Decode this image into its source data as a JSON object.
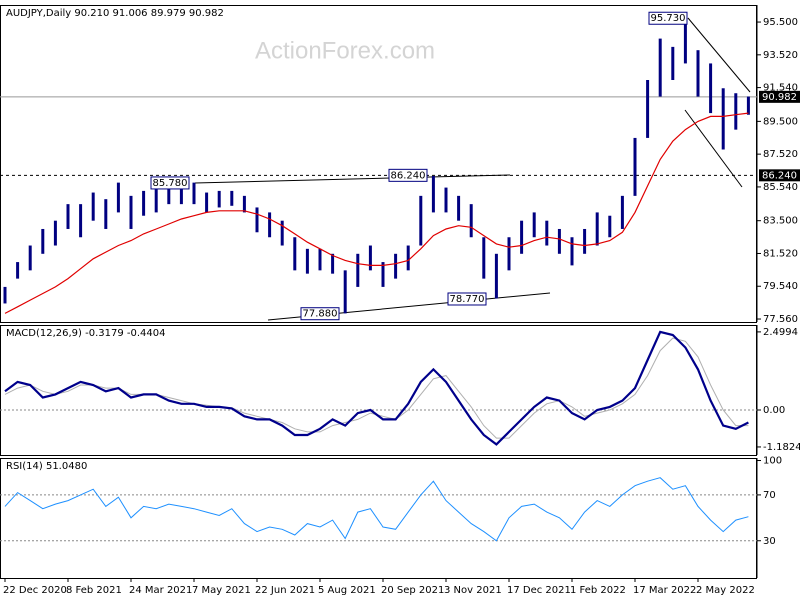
{
  "chart_data": [
    {
      "type": "hilo",
      "title": "AUDJPY,Daily  90.210 91.006 89.979 90.982",
      "watermark": "ActionForex.com",
      "categories": [
        "22 Dec 2020",
        null,
        null,
        null,
        null,
        "8 Feb 2021",
        null,
        null,
        null,
        null,
        "24 Mar 2021",
        null,
        null,
        null,
        null,
        "7 May 2021",
        null,
        null,
        null,
        null,
        "22 Jun 2021",
        null,
        null,
        null,
        null,
        "5 Aug 2021",
        null,
        null,
        null,
        null,
        "20 Sep 2021",
        null,
        null,
        null,
        null,
        "3 Nov 2021",
        null,
        null,
        null,
        null,
        "17 Dec 2021",
        null,
        null,
        null,
        null,
        "1 Feb 2022",
        null,
        null,
        null,
        null,
        "17 Mar 2022",
        null,
        null,
        null,
        null,
        "2 May 2022",
        null,
        null,
        null,
        null
      ],
      "high": [
        79.5,
        81,
        82,
        83,
        83.5,
        84.5,
        84.5,
        85.2,
        84.8,
        85.8,
        85,
        85.3,
        85.5,
        85.5,
        85.6,
        85.8,
        85.2,
        85.3,
        85.3,
        85,
        84.3,
        84,
        83.5,
        82.5,
        81.8,
        81.8,
        81.5,
        80.5,
        81.5,
        82,
        81,
        81.5,
        82,
        85,
        86.2,
        85.5,
        85,
        84.5,
        82.5,
        81.5,
        82.5,
        83.5,
        84,
        83.5,
        83,
        82.5,
        83,
        84,
        83.8,
        85,
        88.5,
        92,
        94.5,
        94,
        95.7,
        93.8,
        93,
        91.5,
        91.2,
        91
      ],
      "low": [
        78.5,
        80,
        80.5,
        81.5,
        82,
        83,
        82.5,
        83.5,
        83,
        84,
        83,
        83.8,
        84,
        84.5,
        84.5,
        84.5,
        84,
        84.3,
        84.4,
        84,
        82.8,
        82.5,
        82,
        80.5,
        80.3,
        80.5,
        80.3,
        77.9,
        79.5,
        80.5,
        79.5,
        80,
        80.5,
        82,
        84,
        84,
        83.5,
        82.5,
        80,
        78.8,
        80.5,
        81.5,
        82.5,
        82,
        81.5,
        80.8,
        81.5,
        82,
        82.5,
        83,
        85,
        88.5,
        91,
        92,
        93,
        91,
        90,
        87.8,
        89,
        89.9
      ],
      "color": "#000080",
      "ma_values": [
        77.9,
        78.3,
        78.7,
        79.1,
        79.5,
        80,
        80.6,
        81.2,
        81.6,
        82,
        82.3,
        82.7,
        83,
        83.3,
        83.6,
        83.8,
        84,
        84.1,
        84.1,
        84.1,
        83.9,
        83.6,
        83.2,
        82.7,
        82.2,
        81.8,
        81.4,
        81.1,
        80.9,
        80.8,
        80.8,
        80.9,
        81.1,
        81.8,
        82.6,
        83,
        83.2,
        83.1,
        82.6,
        82.1,
        81.9,
        82,
        82.3,
        82.5,
        82.4,
        82.1,
        82,
        82.1,
        82.3,
        82.8,
        84,
        85.6,
        87.2,
        88.3,
        89,
        89.5,
        89.8,
        89.8,
        89.9,
        90
      ],
      "ma_color": "#e00000",
      "ylim": [
        77.38,
        96.53
      ],
      "yticks": [
        {
          "value": 95.5,
          "label": "95.500"
        },
        {
          "value": 93.52,
          "label": "93.520"
        },
        {
          "value": 91.54,
          "label": "91.540"
        },
        {
          "value": 89.5,
          "label": "89.500"
        },
        {
          "value": 87.52,
          "label": "87.520"
        },
        {
          "value": 85.54,
          "label": "85.540"
        },
        {
          "value": 83.5,
          "label": "83.500"
        },
        {
          "value": 81.52,
          "label": "81.520"
        },
        {
          "value": 79.54,
          "label": "79.540"
        },
        {
          "value": 77.56,
          "label": "77.560"
        }
      ],
      "levels": [
        {
          "value": 90.982,
          "label": "90.982",
          "style": "solid"
        },
        {
          "value": 86.24,
          "label": "86.240",
          "style": "dashed"
        }
      ],
      "annotations": [
        {
          "value": 85.78,
          "label": "85.780"
        },
        {
          "value": 86.24,
          "label": "86.240"
        },
        {
          "value": 95.73,
          "label": "95.730"
        },
        {
          "value": 77.88,
          "label": "77.880"
        },
        {
          "value": 78.77,
          "label": "78.770"
        }
      ]
    },
    {
      "type": "line",
      "title": "MACD(12,26,9) -0.3179 -0.4404",
      "values": [
        0.6,
        0.9,
        0.8,
        0.4,
        0.5,
        0.7,
        0.9,
        0.8,
        0.6,
        0.7,
        0.4,
        0.5,
        0.5,
        0.3,
        0.2,
        0.2,
        0.1,
        0.1,
        0.05,
        -0.2,
        -0.3,
        -0.3,
        -0.5,
        -0.8,
        -0.8,
        -0.6,
        -0.3,
        -0.5,
        -0.1,
        0,
        -0.3,
        -0.3,
        0.2,
        0.9,
        1.3,
        0.9,
        0.3,
        -0.3,
        -0.8,
        -1.1,
        -0.7,
        -0.3,
        0.1,
        0.4,
        0.3,
        -0.1,
        -0.3,
        0,
        0.1,
        0.3,
        0.7,
        1.6,
        2.5,
        2.4,
        2,
        1.3,
        0.3,
        -0.5,
        -0.6,
        -0.4
      ],
      "color": "#00008b",
      "signal_values": [
        0.5,
        0.7,
        0.8,
        0.6,
        0.5,
        0.6,
        0.8,
        0.8,
        0.7,
        0.7,
        0.5,
        0.5,
        0.5,
        0.4,
        0.3,
        0.2,
        0.15,
        0.1,
        0.07,
        -0.1,
        -0.2,
        -0.3,
        -0.4,
        -0.6,
        -0.7,
        -0.7,
        -0.5,
        -0.4,
        -0.3,
        -0.1,
        -0.2,
        -0.3,
        0,
        0.5,
        1,
        1.1,
        0.6,
        0.1,
        -0.5,
        -0.9,
        -0.9,
        -0.5,
        -0.1,
        0.2,
        0.3,
        0.1,
        -0.2,
        -0.1,
        0,
        0.2,
        0.5,
        1.1,
        1.9,
        2.3,
        2.2,
        1.7,
        0.8,
        0,
        -0.5,
        -0.5
      ],
      "signal_color": "#b0b0b0",
      "ylim": [
        -1.44,
        2.72
      ],
      "yticks": [
        2.4994,
        {
          "value": 0,
          "label": "0.00"
        },
        -1.1824
      ],
      "level_lines": [
        0
      ]
    },
    {
      "type": "line",
      "title": "RSI(14) 51.0480",
      "values": [
        60,
        72,
        65,
        58,
        62,
        65,
        70,
        75,
        60,
        68,
        50,
        60,
        58,
        62,
        60,
        58,
        55,
        52,
        58,
        45,
        38,
        42,
        40,
        35,
        45,
        42,
        48,
        32,
        55,
        58,
        42,
        40,
        55,
        70,
        82,
        65,
        55,
        45,
        38,
        30,
        50,
        60,
        62,
        55,
        50,
        40,
        55,
        65,
        60,
        70,
        78,
        82,
        85,
        75,
        78,
        60,
        48,
        38,
        48,
        51
      ],
      "color": "#1e90ff",
      "ylim": [
        -2.5,
        102.2
      ],
      "yticks": [
        100,
        70,
        30
      ],
      "level_lines": [
        70,
        30
      ]
    }
  ]
}
